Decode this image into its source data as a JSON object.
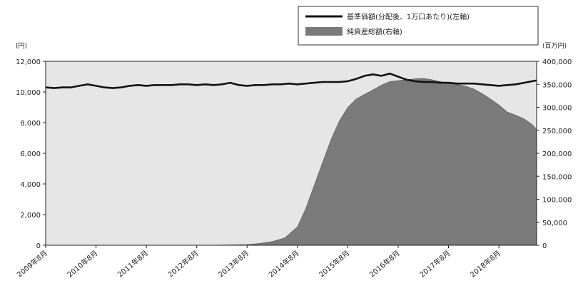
{
  "chart_data": {
    "type": "line+area",
    "left_axis": {
      "unit_label": "(円)",
      "ylim": [
        0,
        12000
      ],
      "ticks": [
        0,
        2000,
        4000,
        6000,
        8000,
        10000,
        12000
      ],
      "tick_labels": [
        "0",
        "2,000",
        "4,000",
        "6,000",
        "8,000",
        "10,000",
        "12,000"
      ]
    },
    "right_axis": {
      "unit_label": "(百万円)",
      "ylim": [
        0,
        400000
      ],
      "ticks": [
        0,
        50000,
        100000,
        150000,
        200000,
        250000,
        300000,
        350000,
        400000
      ],
      "tick_labels": [
        "0",
        "50,000",
        "100,000",
        "150,000",
        "200,000",
        "250,000",
        "300,000",
        "350,000",
        "400,000"
      ]
    },
    "x_axis": {
      "start": "2009-08",
      "end": "2019-05",
      "tick_labels": [
        "2009年8月",
        "2010年8月",
        "2011年8月",
        "2012年8月",
        "2013年8月",
        "2014年8月",
        "2015年8月",
        "2016年8月",
        "2017年8月",
        "2018年8月"
      ],
      "tick_dates": [
        "2009-08",
        "2010-08",
        "2011-08",
        "2012-08",
        "2013-08",
        "2014-08",
        "2015-08",
        "2016-08",
        "2017-08",
        "2018-08"
      ]
    },
    "legend": {
      "placement": "top-right",
      "entries": [
        "基準価額(分配後、1万口あたり)(左軸)",
        "純資産総額(右軸)"
      ]
    },
    "background_color": "#e6e6e6",
    "series": [
      {
        "name": "基準価額(分配後、1万口あたり)(左軸)",
        "type": "line",
        "axis": "left",
        "color": "#111111",
        "points": [
          [
            "2009-08",
            10300
          ],
          [
            "2009-10",
            10250
          ],
          [
            "2009-12",
            10300
          ],
          [
            "2010-02",
            10300
          ],
          [
            "2010-04",
            10400
          ],
          [
            "2010-06",
            10500
          ],
          [
            "2010-08",
            10400
          ],
          [
            "2010-10",
            10300
          ],
          [
            "2010-12",
            10250
          ],
          [
            "2011-02",
            10300
          ],
          [
            "2011-04",
            10400
          ],
          [
            "2011-06",
            10450
          ],
          [
            "2011-08",
            10400
          ],
          [
            "2011-10",
            10450
          ],
          [
            "2011-12",
            10450
          ],
          [
            "2012-02",
            10450
          ],
          [
            "2012-04",
            10500
          ],
          [
            "2012-06",
            10500
          ],
          [
            "2012-08",
            10450
          ],
          [
            "2012-10",
            10500
          ],
          [
            "2012-12",
            10450
          ],
          [
            "2013-02",
            10500
          ],
          [
            "2013-04",
            10600
          ],
          [
            "2013-06",
            10450
          ],
          [
            "2013-08",
            10400
          ],
          [
            "2013-10",
            10450
          ],
          [
            "2013-12",
            10450
          ],
          [
            "2014-02",
            10500
          ],
          [
            "2014-04",
            10500
          ],
          [
            "2014-06",
            10550
          ],
          [
            "2014-08",
            10500
          ],
          [
            "2014-10",
            10550
          ],
          [
            "2014-12",
            10600
          ],
          [
            "2015-02",
            10650
          ],
          [
            "2015-04",
            10650
          ],
          [
            "2015-06",
            10650
          ],
          [
            "2015-08",
            10700
          ],
          [
            "2015-10",
            10850
          ],
          [
            "2015-12",
            11050
          ],
          [
            "2016-02",
            11150
          ],
          [
            "2016-04",
            11050
          ],
          [
            "2016-06",
            11200
          ],
          [
            "2016-08",
            11000
          ],
          [
            "2016-10",
            10800
          ],
          [
            "2016-12",
            10700
          ],
          [
            "2017-02",
            10650
          ],
          [
            "2017-04",
            10650
          ],
          [
            "2017-06",
            10600
          ],
          [
            "2017-08",
            10600
          ],
          [
            "2017-10",
            10550
          ],
          [
            "2017-12",
            10550
          ],
          [
            "2018-02",
            10550
          ],
          [
            "2018-04",
            10500
          ],
          [
            "2018-06",
            10450
          ],
          [
            "2018-08",
            10400
          ],
          [
            "2018-10",
            10450
          ],
          [
            "2018-12",
            10500
          ],
          [
            "2019-02",
            10600
          ],
          [
            "2019-04",
            10700
          ],
          [
            "2019-05",
            10750
          ]
        ]
      },
      {
        "name": "純資産総額(右軸)",
        "type": "area",
        "axis": "right",
        "color": "#7a7a7a",
        "points": [
          [
            "2009-08",
            0
          ],
          [
            "2012-08",
            0
          ],
          [
            "2013-02",
            500
          ],
          [
            "2013-08",
            1500
          ],
          [
            "2013-11",
            4000
          ],
          [
            "2014-02",
            8000
          ],
          [
            "2014-05",
            16000
          ],
          [
            "2014-08",
            40000
          ],
          [
            "2014-10",
            80000
          ],
          [
            "2014-12",
            130000
          ],
          [
            "2015-02",
            180000
          ],
          [
            "2015-04",
            230000
          ],
          [
            "2015-06",
            270000
          ],
          [
            "2015-08",
            300000
          ],
          [
            "2015-10",
            318000
          ],
          [
            "2015-12",
            328000
          ],
          [
            "2016-02",
            338000
          ],
          [
            "2016-04",
            348000
          ],
          [
            "2016-06",
            356000
          ],
          [
            "2016-08",
            358000
          ],
          [
            "2016-10",
            360000
          ],
          [
            "2016-12",
            362000
          ],
          [
            "2017-02",
            363000
          ],
          [
            "2017-04",
            360000
          ],
          [
            "2017-06",
            356000
          ],
          [
            "2017-08",
            352000
          ],
          [
            "2017-10",
            350000
          ],
          [
            "2017-12",
            346000
          ],
          [
            "2018-02",
            340000
          ],
          [
            "2018-04",
            330000
          ],
          [
            "2018-06",
            318000
          ],
          [
            "2018-08",
            305000
          ],
          [
            "2018-10",
            290000
          ],
          [
            "2018-12",
            283000
          ],
          [
            "2019-02",
            275000
          ],
          [
            "2019-04",
            262000
          ],
          [
            "2019-05",
            252000
          ]
        ]
      }
    ]
  }
}
